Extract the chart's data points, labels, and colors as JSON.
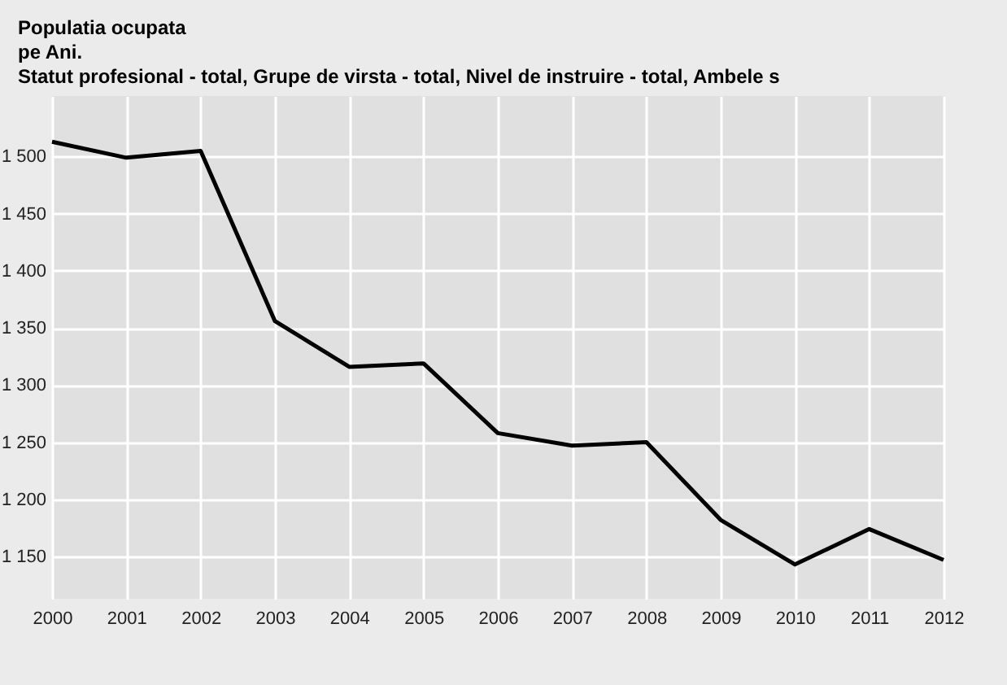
{
  "chart_data": {
    "type": "line",
    "title": "Populatia ocupata",
    "subtitle": "pe Ani.\nStatut profesional - total, Grupe de virsta - total, Nivel de instruire - total, Ambele s",
    "categories": [
      "2000",
      "2001",
      "2002",
      "2003",
      "2004",
      "2005",
      "2006",
      "2007",
      "2008",
      "2009",
      "2010",
      "2011",
      "2012"
    ],
    "series": [
      {
        "color": "#000000",
        "values": [
          1513,
          1499,
          1505,
          1356,
          1316,
          1319,
          1258,
          1247,
          1250,
          1182,
          1143,
          1174,
          1147
        ]
      }
    ],
    "ylim": [
      1113,
      1553
    ],
    "yticks": [
      {
        "value": 1150,
        "label": "1 150"
      },
      {
        "value": 1200,
        "label": "1 200"
      },
      {
        "value": 1250,
        "label": "1 250"
      },
      {
        "value": 1300,
        "label": "1 300"
      },
      {
        "value": 1350,
        "label": "1 350"
      },
      {
        "value": 1400,
        "label": "1 400"
      },
      {
        "value": 1450,
        "label": "1 450"
      },
      {
        "value": 1500,
        "label": "1 500"
      }
    ],
    "grid": true,
    "legend": false
  }
}
